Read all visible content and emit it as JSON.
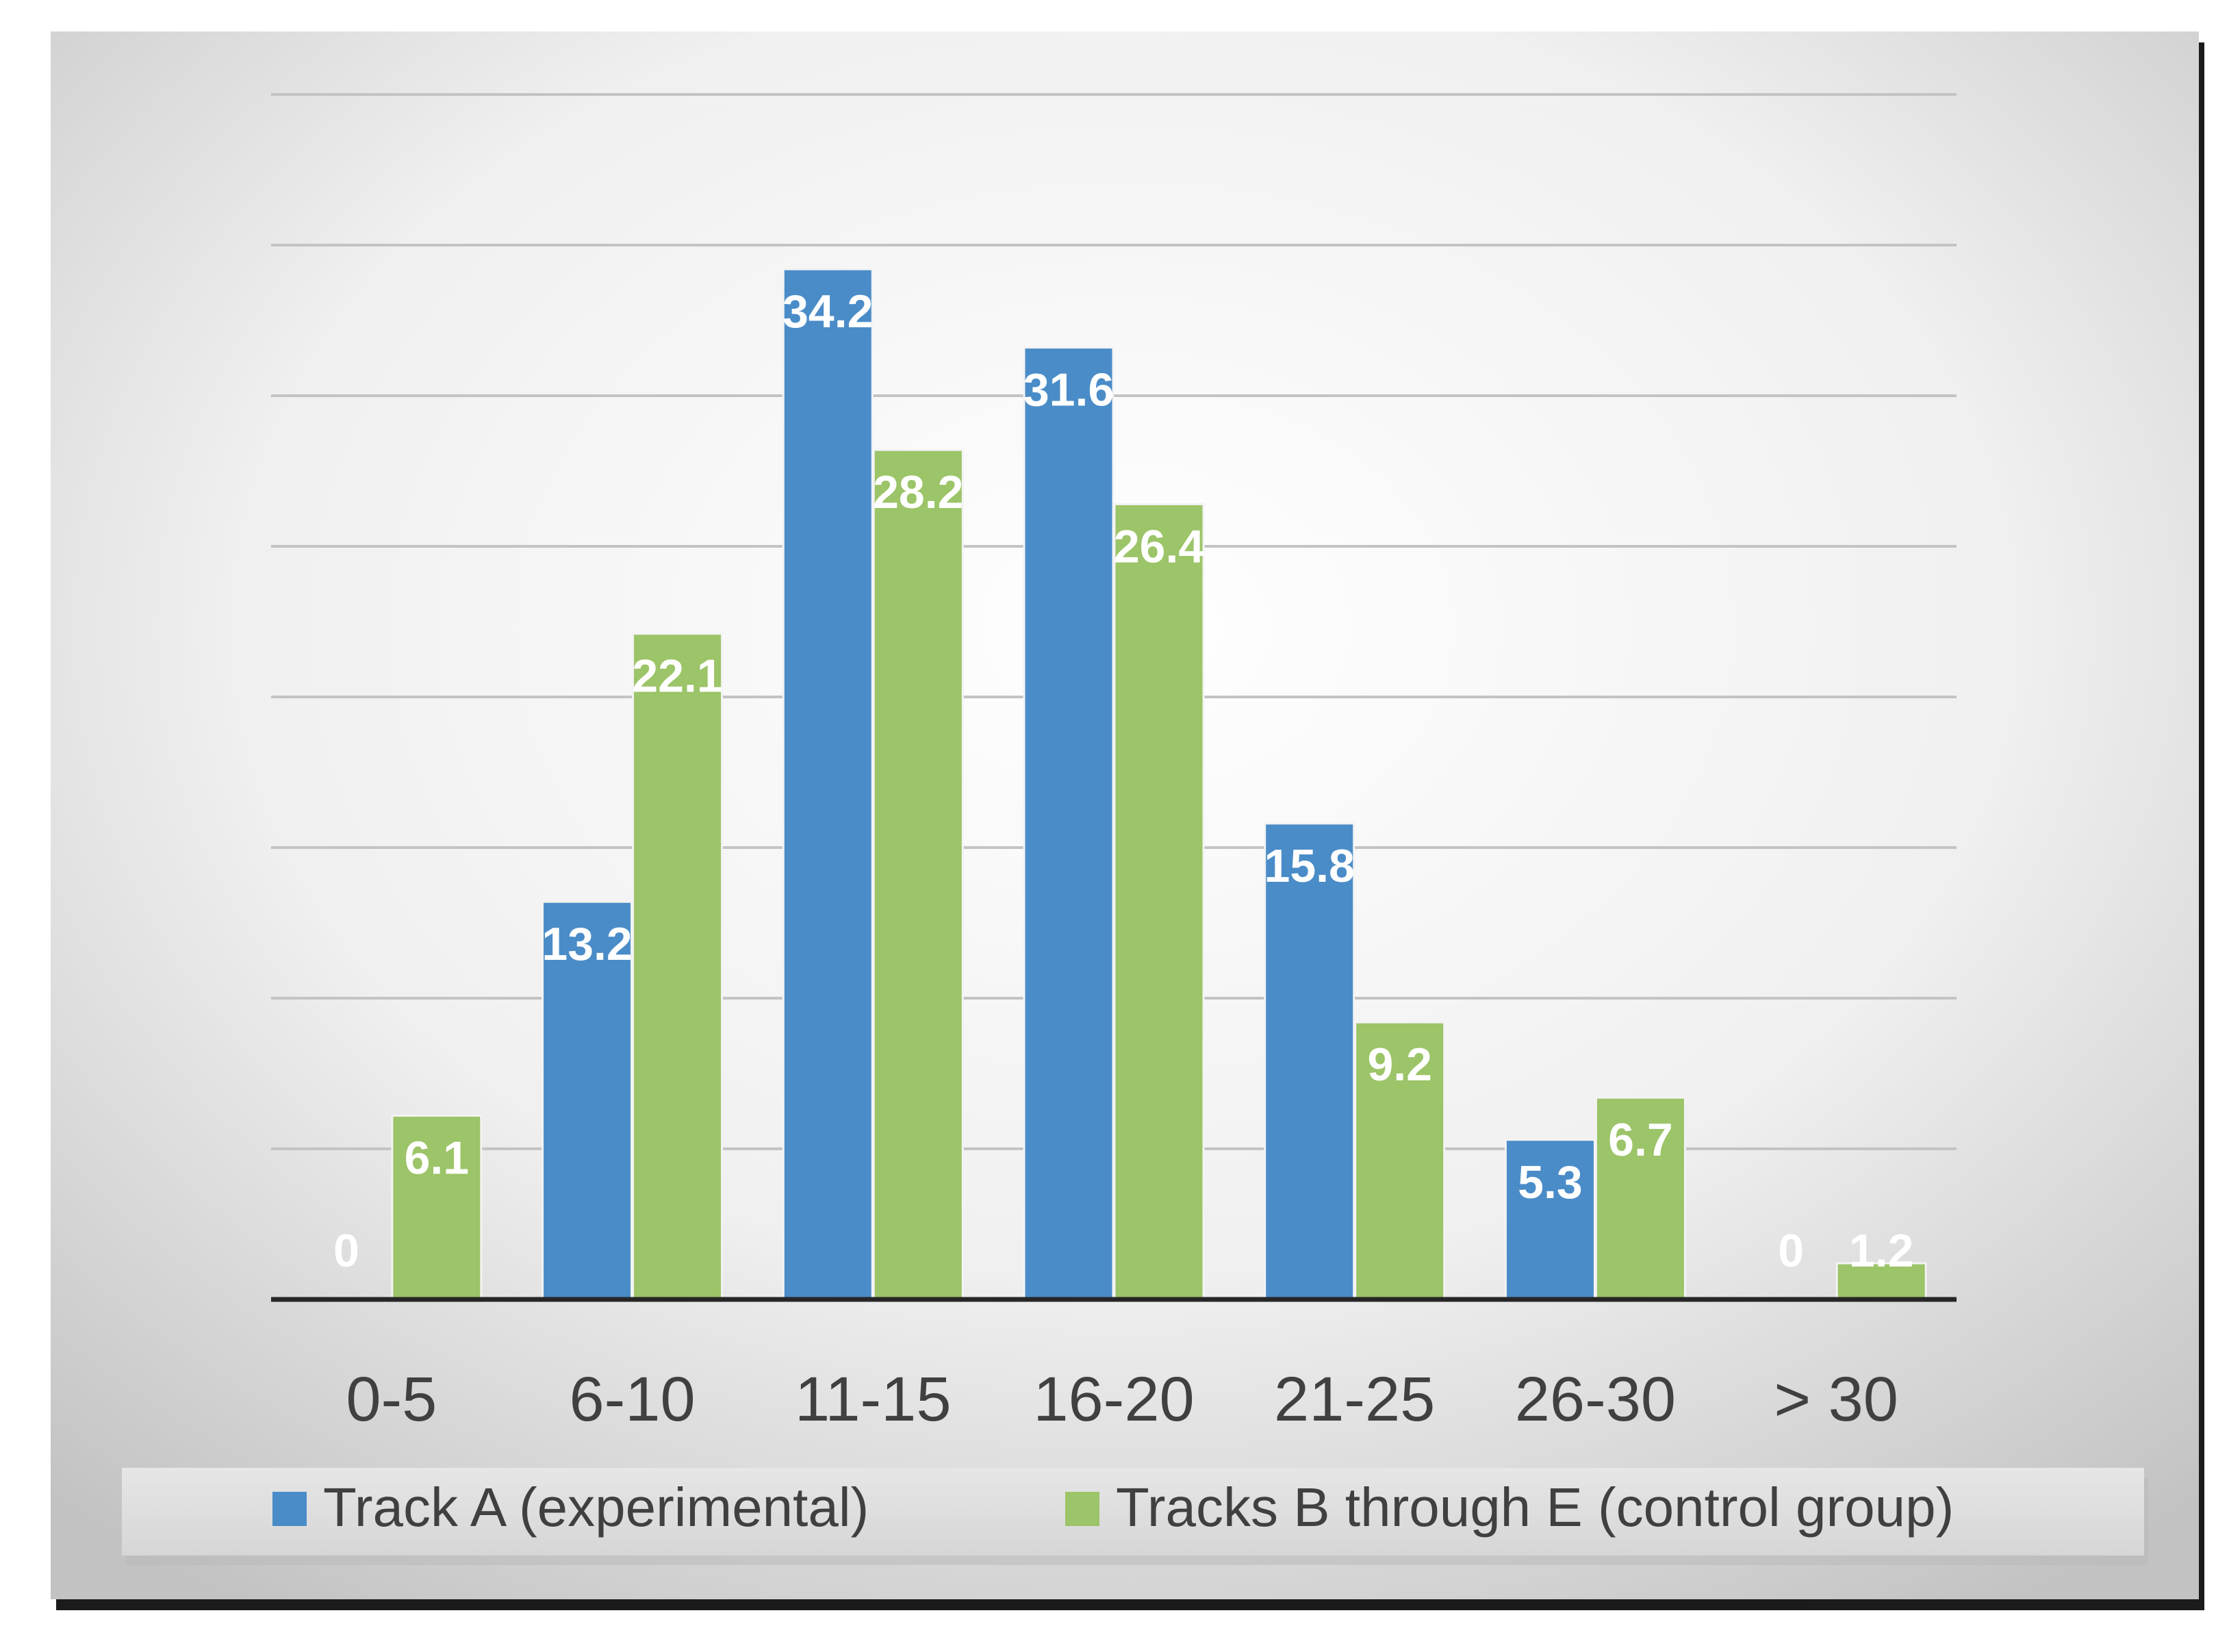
{
  "chart_data": {
    "type": "bar",
    "categories": [
      "0-5",
      "6-10",
      "11-15",
      "16-20",
      "21-25",
      "26-30",
      "> 30"
    ],
    "series": [
      {
        "name": "Track A (experimental)",
        "color": "#4a8cc8",
        "values": [
          0,
          13.2,
          34.2,
          31.6,
          15.8,
          5.3,
          0
        ],
        "labels": [
          "0",
          "13.2",
          "34.2",
          "31.6",
          "15.8",
          "5.3",
          "0"
        ]
      },
      {
        "name": "Tracks B through E (control group)",
        "color": "#9cc468",
        "values": [
          6.1,
          22.1,
          28.2,
          26.4,
          9.2,
          6.7,
          1.2
        ],
        "labels": [
          "6.1",
          "22.1",
          "28.2",
          "26.4",
          "9.2",
          "6.7",
          "1.2"
        ]
      }
    ],
    "ylim": [
      0,
      40
    ],
    "gridlines": [
      5,
      10,
      15,
      20,
      25,
      30,
      35,
      40
    ],
    "y_tick_labels_shown": false,
    "title": "",
    "xlabel": "",
    "ylabel": "",
    "legend_position": "bottom"
  }
}
